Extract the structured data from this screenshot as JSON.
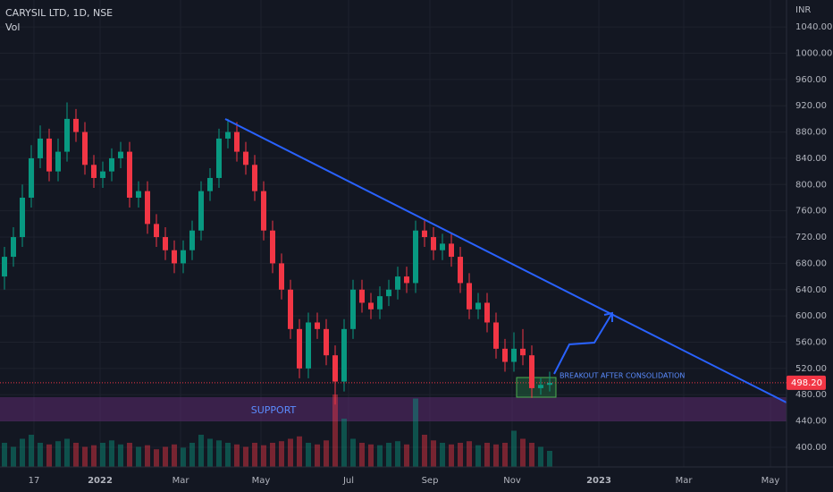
{
  "chart_data": {
    "type": "candlestick",
    "title": "CARYSIL LTD, 1D, NSE",
    "subtitle": "Vol",
    "currency": "INR",
    "categories": [
      null,
      null,
      null,
      null,
      null,
      null,
      null,
      null,
      null,
      null,
      null,
      null,
      null,
      null,
      null,
      null,
      null,
      null,
      null,
      null,
      null,
      null,
      null,
      null,
      null,
      null,
      null,
      null,
      null,
      null,
      null,
      null,
      null,
      null,
      null,
      null,
      null,
      null,
      null,
      null,
      null,
      null,
      null,
      null,
      null,
      null,
      null,
      null,
      null,
      null,
      null,
      null,
      null,
      null,
      null,
      null,
      null,
      null,
      null,
      null,
      null,
      null
    ],
    "open": [
      660,
      690,
      720,
      780,
      840,
      870,
      820,
      850,
      900,
      880,
      830,
      810,
      820,
      840,
      850,
      780,
      790,
      740,
      720,
      700,
      680,
      700,
      730,
      790,
      810,
      870,
      880,
      850,
      830,
      790,
      730,
      680,
      640,
      580,
      520,
      590,
      580,
      540,
      500,
      580,
      640,
      620,
      610,
      630,
      640,
      660,
      650,
      730,
      720,
      700,
      710,
      690,
      650,
      610,
      620,
      590,
      550,
      530,
      550,
      540,
      490,
      495
    ],
    "high": [
      705,
      735,
      800,
      860,
      890,
      885,
      870,
      925,
      915,
      895,
      845,
      835,
      855,
      865,
      865,
      805,
      805,
      755,
      735,
      715,
      715,
      745,
      805,
      825,
      885,
      900,
      895,
      865,
      845,
      805,
      745,
      695,
      655,
      595,
      605,
      605,
      595,
      555,
      595,
      655,
      655,
      635,
      645,
      655,
      675,
      675,
      745,
      745,
      735,
      725,
      725,
      705,
      665,
      635,
      635,
      605,
      565,
      575,
      580,
      555,
      505,
      515
    ],
    "low": [
      640,
      675,
      705,
      765,
      825,
      805,
      805,
      835,
      865,
      815,
      795,
      795,
      805,
      825,
      765,
      765,
      725,
      705,
      685,
      665,
      665,
      685,
      715,
      775,
      795,
      855,
      835,
      815,
      775,
      715,
      665,
      625,
      565,
      505,
      505,
      565,
      525,
      465,
      485,
      565,
      605,
      595,
      595,
      615,
      625,
      635,
      635,
      705,
      685,
      685,
      675,
      635,
      595,
      595,
      575,
      535,
      515,
      515,
      525,
      475,
      480,
      485
    ],
    "close": [
      690,
      720,
      780,
      840,
      870,
      820,
      850,
      900,
      880,
      830,
      810,
      820,
      840,
      850,
      780,
      790,
      740,
      720,
      700,
      680,
      700,
      730,
      790,
      810,
      870,
      880,
      850,
      830,
      790,
      730,
      680,
      640,
      580,
      520,
      590,
      580,
      540,
      500,
      580,
      640,
      620,
      610,
      630,
      640,
      660,
      650,
      730,
      720,
      700,
      710,
      690,
      650,
      610,
      620,
      590,
      550,
      530,
      550,
      540,
      490,
      495,
      498.2
    ],
    "volume": [
      30,
      25,
      35,
      40,
      30,
      28,
      32,
      35,
      30,
      25,
      27,
      30,
      33,
      28,
      30,
      25,
      27,
      22,
      25,
      28,
      24,
      30,
      40,
      35,
      33,
      30,
      28,
      25,
      30,
      27,
      30,
      32,
      35,
      38,
      30,
      28,
      33,
      90,
      60,
      35,
      30,
      28,
      27,
      30,
      32,
      28,
      85,
      40,
      33,
      30,
      28,
      30,
      32,
      27,
      30,
      28,
      30,
      45,
      35,
      30,
      25,
      20
    ],
    "up_color": "#089981",
    "down_color": "#f23645",
    "ylim": [
      370,
      1081
    ],
    "vlim": [
      0,
      100
    ],
    "xlim": [
      0,
      88
    ],
    "yticks": [
      {
        "value": 400,
        "label": "400.00"
      },
      {
        "value": 440,
        "label": "440.00"
      },
      {
        "value": 480,
        "label": "480.00"
      },
      {
        "value": 520,
        "label": "520.00"
      },
      {
        "value": 560,
        "label": "560.00"
      },
      {
        "value": 600,
        "label": "600.00"
      },
      {
        "value": 640,
        "label": "640.00"
      },
      {
        "value": 680,
        "label": "680.00"
      },
      {
        "value": 720,
        "label": "720.00"
      },
      {
        "value": 760,
        "label": "760.00"
      },
      {
        "value": 800,
        "label": "800.00"
      },
      {
        "value": 840,
        "label": "840.00"
      },
      {
        "value": 880,
        "label": "880.00"
      },
      {
        "value": 920,
        "label": "920.00"
      },
      {
        "value": 960,
        "label": "960.00"
      },
      {
        "value": 1000,
        "label": "1000.00"
      },
      {
        "value": 1040,
        "label": "1040.00"
      }
    ],
    "xticks": [
      {
        "value": 3.8,
        "label": "17"
      },
      {
        "value": 11.2,
        "label": "2022"
      },
      {
        "value": 20.2,
        "label": "Mar"
      },
      {
        "value": 29.2,
        "label": "May"
      },
      {
        "value": 39,
        "label": "Jul"
      },
      {
        "value": 48.1,
        "label": "Sep"
      },
      {
        "value": 57.3,
        "label": "Nov"
      },
      {
        "value": 67,
        "label": "2023"
      },
      {
        "value": 76.5,
        "label": "Mar"
      },
      {
        "value": 86.2,
        "label": "May"
      }
    ],
    "last_price": {
      "value": 498.2,
      "label": "498.20"
    },
    "grid": true,
    "annotations": [
      "SUPPORT",
      "BREAKOUT AFTER CONSOLIDATION"
    ]
  }
}
